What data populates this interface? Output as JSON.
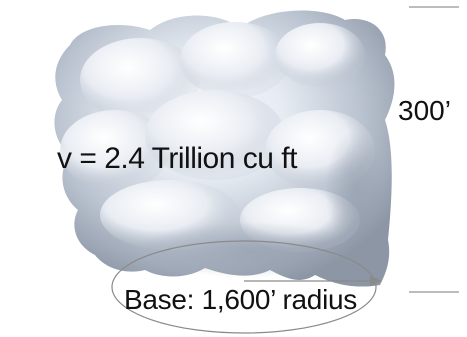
{
  "slide": {
    "volume_label": "v = 2.4 Trillion cu ft",
    "height_label": "300’",
    "base_label": "Base: 1,600’ radius"
  }
}
